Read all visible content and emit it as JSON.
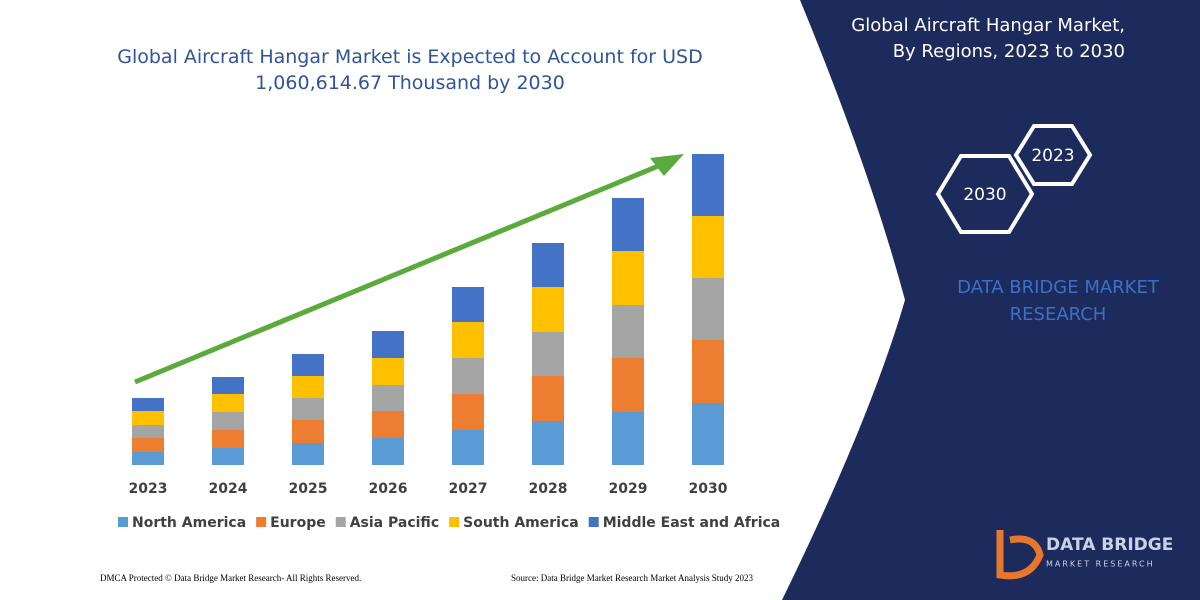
{
  "chart_data": {
    "type": "stacked-bar",
    "title": "Global Aircraft Hangar Market is Expected to Account for USD 1,060,614.67 Thousand by 2030",
    "categories": [
      "2023",
      "2024",
      "2025",
      "2026",
      "2027",
      "2028",
      "2029",
      "2030"
    ],
    "series": [
      {
        "name": "North America",
        "color": "#5b9bd5",
        "values": [
          13,
          17,
          22,
          27,
          35,
          44,
          53,
          62
        ]
      },
      {
        "name": "Europe",
        "color": "#ed7d31",
        "values": [
          14,
          18,
          23,
          27,
          36,
          45,
          54,
          63
        ]
      },
      {
        "name": "Asia Pacific",
        "color": "#a5a5a5",
        "values": [
          13,
          18,
          22,
          26,
          36,
          44,
          53,
          62
        ]
      },
      {
        "name": "South America",
        "color": "#ffc000",
        "values": [
          14,
          18,
          22,
          27,
          36,
          45,
          54,
          62
        ]
      },
      {
        "name": "Middle East and Africa",
        "color": "#4472c4",
        "values": [
          13,
          17,
          22,
          27,
          35,
          44,
          53,
          62
        ]
      }
    ],
    "legend": "bottom"
  },
  "panel": {
    "title_lines": [
      "Global Aircraft Hangar Market,",
      "By Regions, 2023 to 2030"
    ],
    "hex_a": "2023",
    "hex_b": "2030",
    "brand_lines": [
      "DATA BRIDGE MARKET",
      "RESEARCH"
    ],
    "logo_top": "DATA BRIDGE",
    "logo_bottom": "MARKET RESEARCH"
  },
  "footer": {
    "left": "DMCA Protected © Data Bridge Market Research-  All Rights Reserved.",
    "right": "Source: Data Bridge Market Research  Market Analysis Study 2023"
  }
}
